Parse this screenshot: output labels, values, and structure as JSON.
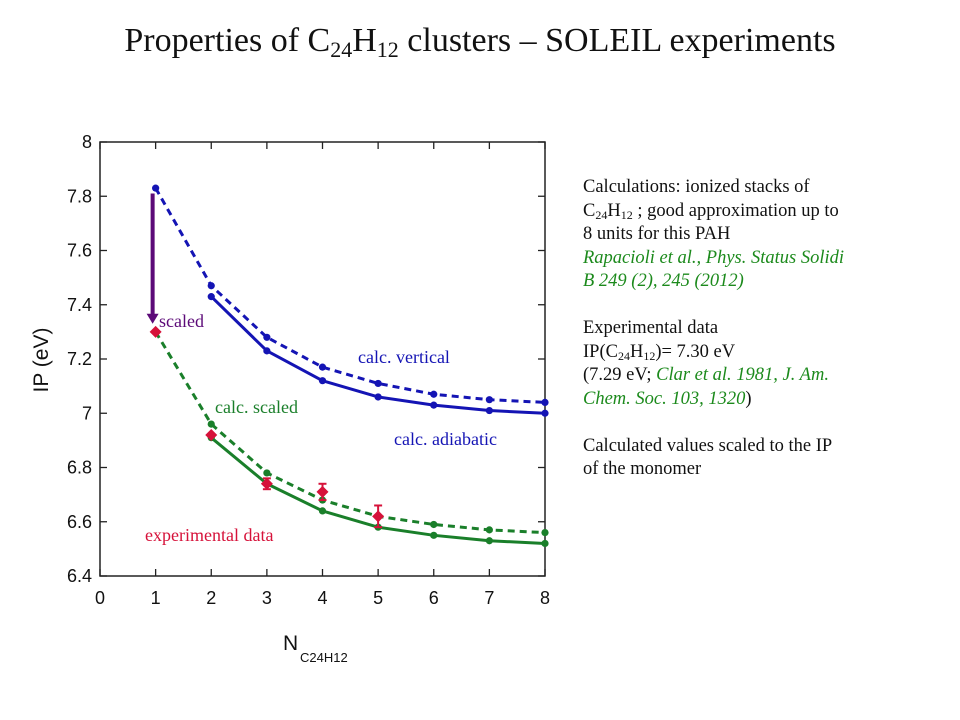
{
  "title": {
    "prefix": "Properties  of C",
    "sub1": "24",
    "mid": "H",
    "sub2": "12",
    "suffix": " clusters – SOLEIL experiments"
  },
  "notes": {
    "calc_l1": "Calculations: ionized stacks of",
    "calc_l2_c": "C",
    "calc_l2_sub1": "24",
    "calc_l2_h": "H",
    "calc_l2_sub2": "12",
    "calc_l2_rest": " ; good approximation up to",
    "calc_l3": "8 units for this PAH",
    "ref1_l1": "Rapacioli et al., Phys. Status Solidi",
    "ref1_l2": "B 249 (2), 245 (2012)",
    "exp_l1": "Experimental data",
    "exp_l2_pre": "IP(C",
    "exp_l2_sub1": "24",
    "exp_l2_h": "H",
    "exp_l2_sub2": "12",
    "exp_l2_post": ")= 7.30 eV",
    "exp_l3_pre": "(7.29 eV; ",
    "exp_l3_ref": "Clar et al. 1981, J. Am.",
    "exp_l4_ref": "Chem. Soc. 103, 1320",
    "exp_l4_post": ")",
    "scaled_l1": "Calculated values scaled to the IP",
    "scaled_l2": "of the monomer"
  },
  "colors": {
    "blue": "#1414b4",
    "green": "#1a7f2a",
    "red": "#d6123a",
    "purple": "#5c0a78"
  },
  "chart_data": {
    "type": "line",
    "xlabel": "N",
    "xlabel_sub": "C24H12",
    "ylabel": "IP (eV)",
    "xlim": [
      0,
      8
    ],
    "ylim": [
      6.4,
      8
    ],
    "x_ticks": [
      "0",
      "1",
      "2",
      "3",
      "4",
      "5",
      "6",
      "7",
      "8"
    ],
    "y_ticks": [
      "6.4",
      "6.6",
      "6.8",
      "7",
      "7.2",
      "7.4",
      "7.6",
      "7.8",
      "8"
    ],
    "series": [
      {
        "name": "calc. vertical",
        "style": "dashed",
        "color": "#1414b4",
        "x": [
          1,
          2,
          3,
          4,
          5,
          6,
          7,
          8
        ],
        "y": [
          7.83,
          7.47,
          7.28,
          7.17,
          7.11,
          7.07,
          7.05,
          7.04
        ]
      },
      {
        "name": "calc. adiabatic",
        "style": "solid",
        "color": "#1414b4",
        "x": [
          2,
          3,
          4,
          5,
          6,
          7,
          8
        ],
        "y": [
          7.43,
          7.23,
          7.12,
          7.06,
          7.03,
          7.01,
          7.0
        ]
      },
      {
        "name": "calc. scaled",
        "style": "dashed",
        "color": "#1a7f2a",
        "x": [
          1,
          2,
          3,
          4,
          5,
          6,
          7,
          8
        ],
        "y": [
          7.3,
          6.96,
          6.78,
          6.68,
          6.62,
          6.59,
          6.57,
          6.56
        ]
      },
      {
        "name": "",
        "style": "solid",
        "color": "#1a7f2a",
        "x": [
          2,
          3,
          4,
          5,
          6,
          7,
          8
        ],
        "y": [
          6.91,
          6.74,
          6.64,
          6.58,
          6.55,
          6.53,
          6.52
        ]
      }
    ],
    "experimental": {
      "name": "experimental data",
      "color": "#d6123a",
      "points": [
        {
          "x": 1,
          "y": 7.3,
          "err": 0
        },
        {
          "x": 2,
          "y": 6.92,
          "err": 0
        },
        {
          "x": 3,
          "y": 6.74,
          "err": 0.02
        },
        {
          "x": 4,
          "y": 6.71,
          "err": 0.03
        },
        {
          "x": 5,
          "y": 6.62,
          "err": 0.04
        }
      ]
    },
    "arrow": {
      "label": "scaled",
      "x": 1,
      "y_from": 7.81,
      "y_to": 7.33,
      "color": "#5c0a78"
    },
    "annotations": [
      {
        "text": "calc. vertical",
        "color": "#1414b4"
      },
      {
        "text": "calc. adiabatic",
        "color": "#1414b4"
      },
      {
        "text": "calc. scaled",
        "color": "#1a7f2a"
      },
      {
        "text": "experimental data",
        "color": "#d6123a"
      },
      {
        "text": "scaled",
        "color": "#5c0a78"
      }
    ]
  }
}
